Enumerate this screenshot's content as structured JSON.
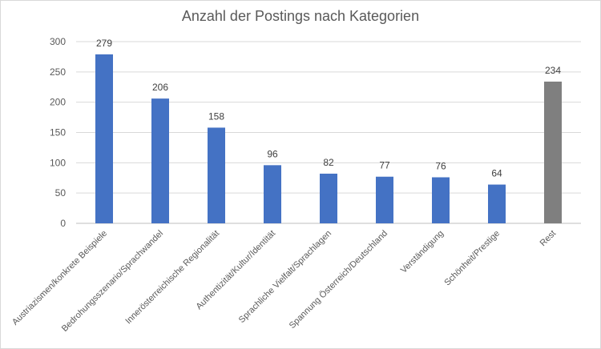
{
  "chart_data": {
    "type": "bar",
    "title": "Anzahl der Postings nach Kategorien",
    "categories": [
      "Austriazismen/konkrete Beispiele",
      "Bedrohungsszenario/Sprachwandel",
      "Innerösterreichische Regionalität",
      "Authentizität/Kultur/Identität",
      "Sprachliche Vielfalt/Sprachlagen",
      "Spannung Österreich/Deutschland",
      "Verständigung",
      "Schönheit/Prestige",
      "Rest"
    ],
    "values": [
      279,
      206,
      158,
      96,
      82,
      77,
      76,
      64,
      234
    ],
    "colors": [
      "#4472c4",
      "#4472c4",
      "#4472c4",
      "#4472c4",
      "#4472c4",
      "#4472c4",
      "#4472c4",
      "#4472c4",
      "#7f7f7f"
    ],
    "ylim": [
      0,
      300
    ],
    "yticks": [
      0,
      50,
      100,
      150,
      200,
      250,
      300
    ],
    "grid": true,
    "xlabel": "",
    "ylabel": ""
  }
}
